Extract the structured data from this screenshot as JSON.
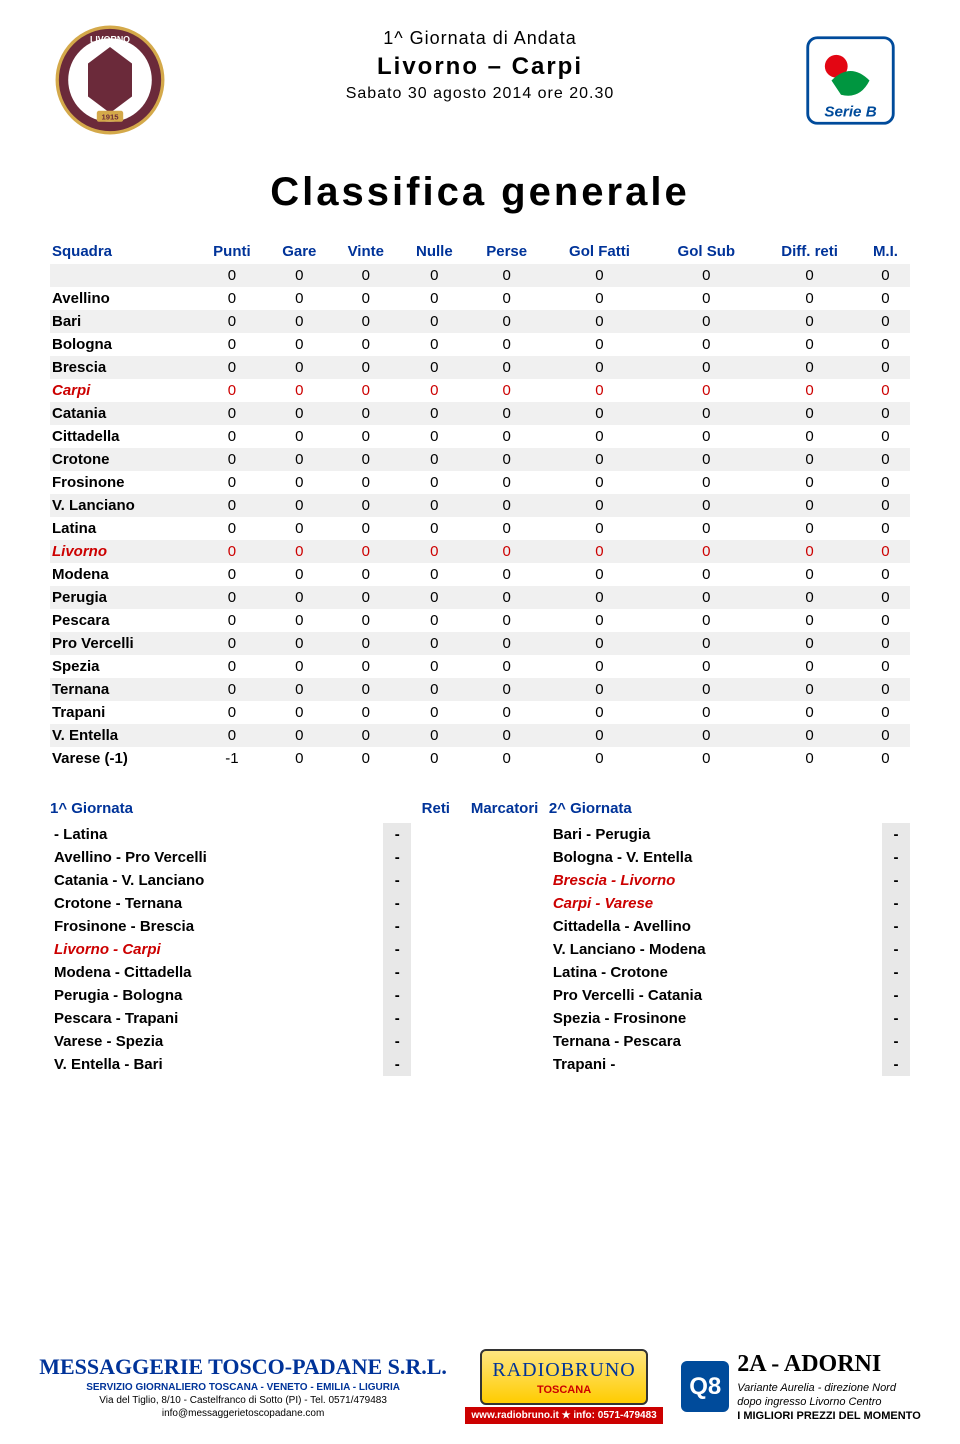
{
  "header": {
    "round": "1^ Giornata di Andata",
    "match": "Livorno – Carpi",
    "date": "Sabato 30 agosto 2014 ore 20.30"
  },
  "title": "Classifica generale",
  "columns": [
    "Squadra",
    "Punti",
    "Gare",
    "Vinte",
    "Nulle",
    "Perse",
    "Gol Fatti",
    "Gol Sub",
    "Diff. reti",
    "M.I."
  ],
  "standings": [
    {
      "team": "",
      "v": [
        "0",
        "0",
        "0",
        "0",
        "0",
        "0",
        "0",
        "0",
        "0"
      ],
      "shade": true,
      "hl": false,
      "italic": false
    },
    {
      "team": "Avellino",
      "v": [
        "0",
        "0",
        "0",
        "0",
        "0",
        "0",
        "0",
        "0",
        "0"
      ],
      "shade": false,
      "hl": false,
      "italic": false
    },
    {
      "team": "Bari",
      "v": [
        "0",
        "0",
        "0",
        "0",
        "0",
        "0",
        "0",
        "0",
        "0"
      ],
      "shade": true,
      "hl": false,
      "italic": false
    },
    {
      "team": "Bologna",
      "v": [
        "0",
        "0",
        "0",
        "0",
        "0",
        "0",
        "0",
        "0",
        "0"
      ],
      "shade": false,
      "hl": false,
      "italic": false
    },
    {
      "team": "Brescia",
      "v": [
        "0",
        "0",
        "0",
        "0",
        "0",
        "0",
        "0",
        "0",
        "0"
      ],
      "shade": true,
      "hl": false,
      "italic": false
    },
    {
      "team": "Carpi",
      "v": [
        "0",
        "0",
        "0",
        "0",
        "0",
        "0",
        "0",
        "0",
        "0"
      ],
      "shade": false,
      "hl": true,
      "italic": true
    },
    {
      "team": "Catania",
      "v": [
        "0",
        "0",
        "0",
        "0",
        "0",
        "0",
        "0",
        "0",
        "0"
      ],
      "shade": true,
      "hl": false,
      "italic": false
    },
    {
      "team": "Cittadella",
      "v": [
        "0",
        "0",
        "0",
        "0",
        "0",
        "0",
        "0",
        "0",
        "0"
      ],
      "shade": false,
      "hl": false,
      "italic": false
    },
    {
      "team": "Crotone",
      "v": [
        "0",
        "0",
        "0",
        "0",
        "0",
        "0",
        "0",
        "0",
        "0"
      ],
      "shade": true,
      "hl": false,
      "italic": false
    },
    {
      "team": "Frosinone",
      "v": [
        "0",
        "0",
        "0",
        "0",
        "0",
        "0",
        "0",
        "0",
        "0"
      ],
      "shade": false,
      "hl": false,
      "italic": false
    },
    {
      "team": "V. Lanciano",
      "v": [
        "0",
        "0",
        "0",
        "0",
        "0",
        "0",
        "0",
        "0",
        "0"
      ],
      "shade": true,
      "hl": false,
      "italic": false
    },
    {
      "team": "Latina",
      "v": [
        "0",
        "0",
        "0",
        "0",
        "0",
        "0",
        "0",
        "0",
        "0"
      ],
      "shade": false,
      "hl": false,
      "italic": false
    },
    {
      "team": "Livorno",
      "v": [
        "0",
        "0",
        "0",
        "0",
        "0",
        "0",
        "0",
        "0",
        "0"
      ],
      "shade": true,
      "hl": true,
      "italic": true
    },
    {
      "team": "Modena",
      "v": [
        "0",
        "0",
        "0",
        "0",
        "0",
        "0",
        "0",
        "0",
        "0"
      ],
      "shade": false,
      "hl": false,
      "italic": false
    },
    {
      "team": "Perugia",
      "v": [
        "0",
        "0",
        "0",
        "0",
        "0",
        "0",
        "0",
        "0",
        "0"
      ],
      "shade": true,
      "hl": false,
      "italic": false
    },
    {
      "team": "Pescara",
      "v": [
        "0",
        "0",
        "0",
        "0",
        "0",
        "0",
        "0",
        "0",
        "0"
      ],
      "shade": false,
      "hl": false,
      "italic": false
    },
    {
      "team": "Pro Vercelli",
      "v": [
        "0",
        "0",
        "0",
        "0",
        "0",
        "0",
        "0",
        "0",
        "0"
      ],
      "shade": true,
      "hl": false,
      "italic": false
    },
    {
      "team": "Spezia",
      "v": [
        "0",
        "0",
        "0",
        "0",
        "0",
        "0",
        "0",
        "0",
        "0"
      ],
      "shade": false,
      "hl": false,
      "italic": false
    },
    {
      "team": "Ternana",
      "v": [
        "0",
        "0",
        "0",
        "0",
        "0",
        "0",
        "0",
        "0",
        "0"
      ],
      "shade": true,
      "hl": false,
      "italic": false
    },
    {
      "team": "Trapani",
      "v": [
        "0",
        "0",
        "0",
        "0",
        "0",
        "0",
        "0",
        "0",
        "0"
      ],
      "shade": false,
      "hl": false,
      "italic": false
    },
    {
      "team": "V. Entella",
      "v": [
        "0",
        "0",
        "0",
        "0",
        "0",
        "0",
        "0",
        "0",
        "0"
      ],
      "shade": true,
      "hl": false,
      "italic": false
    },
    {
      "team": "Varese (-1)",
      "v": [
        "-1",
        "0",
        "0",
        "0",
        "0",
        "0",
        "0",
        "0",
        "0"
      ],
      "shade": false,
      "hl": false,
      "italic": false
    }
  ],
  "fixtures_left": {
    "title": "1^ Giornata",
    "rows": [
      {
        "name": " - Latina",
        "score": "-",
        "hl": false
      },
      {
        "name": "Avellino - Pro Vercelli",
        "score": "-",
        "hl": false
      },
      {
        "name": "Catania - V. Lanciano",
        "score": "-",
        "hl": false
      },
      {
        "name": "Crotone - Ternana",
        "score": "-",
        "hl": false
      },
      {
        "name": "Frosinone - Brescia",
        "score": "-",
        "hl": false
      },
      {
        "name": "Livorno - Carpi",
        "score": "-",
        "hl": true
      },
      {
        "name": "Modena - Cittadella",
        "score": "-",
        "hl": false
      },
      {
        "name": "Perugia - Bologna",
        "score": "-",
        "hl": false
      },
      {
        "name": "Pescara - Trapani",
        "score": "-",
        "hl": false
      },
      {
        "name": "Varese - Spezia",
        "score": "-",
        "hl": false
      },
      {
        "name": "V. Entella - Bari",
        "score": "-",
        "hl": false
      }
    ]
  },
  "center_headers": {
    "reti": "Reti",
    "marcatori": "Marcatori"
  },
  "fixtures_right": {
    "title": "2^ Giornata",
    "rows": [
      {
        "name": "Bari - Perugia",
        "score": "-",
        "hl": false
      },
      {
        "name": "Bologna - V. Entella",
        "score": "-",
        "hl": false
      },
      {
        "name": "Brescia - Livorno",
        "score": "-",
        "hl": true
      },
      {
        "name": "Carpi - Varese",
        "score": "-",
        "hl": true
      },
      {
        "name": "Cittadella - Avellino",
        "score": "-",
        "hl": false
      },
      {
        "name": "V. Lanciano - Modena",
        "score": "-",
        "hl": false
      },
      {
        "name": "Latina - Crotone",
        "score": "-",
        "hl": false
      },
      {
        "name": "Pro Vercelli - Catania",
        "score": "-",
        "hl": false
      },
      {
        "name": "Spezia - Frosinone",
        "score": "-",
        "hl": false
      },
      {
        "name": "Ternana - Pescara",
        "score": "-",
        "hl": false
      },
      {
        "name": "Trapani - ",
        "score": "-",
        "hl": false
      }
    ]
  },
  "sponsors": {
    "s1": {
      "name": "MESSAGGERIE TOSCO-PADANE S.R.L.",
      "line1": "SERVIZIO GIORNALIERO TOSCANA - VENETO - EMILIA - LIGURIA",
      "line2": "Via del Tiglio, 8/10 - Castelfranco di Sotto (PI) - Tel. 0571/479483",
      "line3": "info@messaggerietoscopadane.com"
    },
    "s2": {
      "name": "RADIOBRUNO",
      "sub": "TOSCANA",
      "line1": "www.radiobruno.it ★ info: 0571-479483"
    },
    "s3": {
      "q8": "Q8",
      "name": "2A - ADORNI",
      "line1": "Variante Aurelia - direzione Nord",
      "line2": "dopo ingresso Livorno Centro",
      "line3": "I MIGLIORI PREZZI DEL MOMENTO"
    }
  },
  "colors": {
    "header_blue": "#003399",
    "highlight_red": "#cc0000",
    "shade": "#f0f0f0",
    "score_bg": "#e8e8e8"
  }
}
